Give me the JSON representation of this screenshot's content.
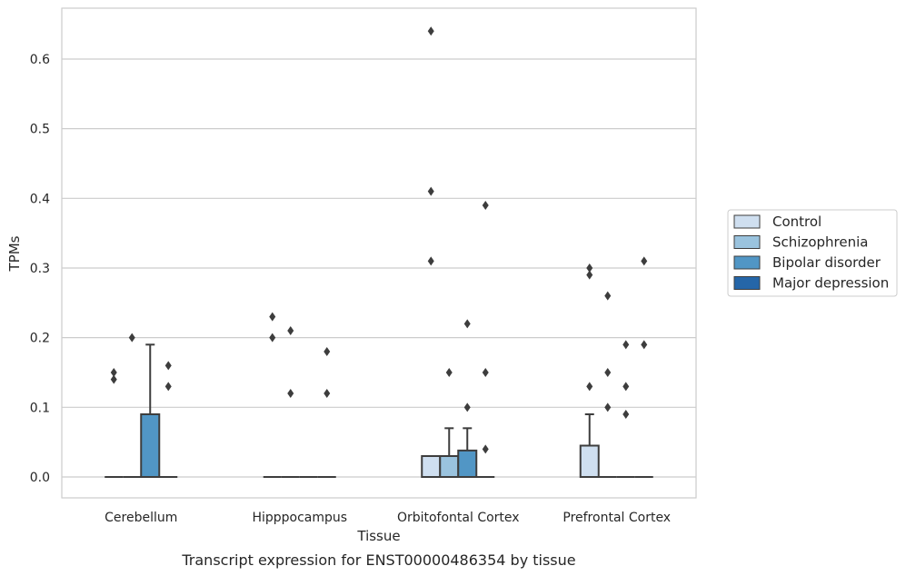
{
  "caption": "Transcript expression for ENST00000486354 by tissue",
  "chart_data": {
    "type": "box",
    "xlabel": "Tissue",
    "ylabel": "TPMs",
    "ylim": [
      -0.03,
      0.673
    ],
    "yticks": [
      0.0,
      0.1,
      0.2,
      0.3,
      0.4,
      0.5,
      0.6
    ],
    "ytick_labels": [
      "0.0",
      "0.1",
      "0.2",
      "0.3",
      "0.4",
      "0.5",
      "0.6"
    ],
    "grid": "horizontal",
    "legend_position": "right",
    "categories": [
      "Cerebellum",
      "Hipppocampus",
      "Orbitofontal Cortex",
      "Prefrontal Cortex"
    ],
    "series": [
      {
        "name": "Control",
        "color": "#cfdff0",
        "boxes": [
          {
            "q1": 0,
            "median": 0,
            "q3": 0,
            "whisker_low": 0,
            "whisker_high": 0,
            "outliers": [
              0.14,
              0.15
            ]
          },
          {
            "q1": 0,
            "median": 0,
            "q3": 0,
            "whisker_low": 0,
            "whisker_high": 0,
            "outliers": [
              0.2,
              0.23
            ]
          },
          {
            "q1": 0,
            "median": 0,
            "q3": 0.03,
            "whisker_low": 0,
            "whisker_high": 0.03,
            "outliers": [
              0.31,
              0.41,
              0.64
            ]
          },
          {
            "q1": 0,
            "median": 0,
            "q3": 0.045,
            "whisker_low": 0,
            "whisker_high": 0.09,
            "outliers": [
              0.13,
              0.29,
              0.3
            ]
          }
        ]
      },
      {
        "name": "Schizophrenia",
        "color": "#9ac3de",
        "boxes": [
          {
            "q1": 0,
            "median": 0,
            "q3": 0,
            "whisker_low": 0,
            "whisker_high": 0,
            "outliers": [
              0.2
            ]
          },
          {
            "q1": 0,
            "median": 0,
            "q3": 0,
            "whisker_low": 0,
            "whisker_high": 0,
            "outliers": [
              0.12,
              0.21
            ]
          },
          {
            "q1": 0,
            "median": 0,
            "q3": 0.03,
            "whisker_low": 0,
            "whisker_high": 0.07,
            "outliers": [
              0.15
            ]
          },
          {
            "q1": 0,
            "median": 0,
            "q3": 0,
            "whisker_low": 0,
            "whisker_high": 0,
            "outliers": [
              0.1,
              0.15,
              0.26
            ]
          }
        ]
      },
      {
        "name": "Bipolar disorder",
        "color": "#5196c5",
        "boxes": [
          {
            "q1": 0,
            "median": 0,
            "q3": 0.09,
            "whisker_low": 0,
            "whisker_high": 0.19,
            "outliers": []
          },
          {
            "q1": 0,
            "median": 0,
            "q3": 0,
            "whisker_low": 0,
            "whisker_high": 0,
            "outliers": []
          },
          {
            "q1": 0,
            "median": 0,
            "q3": 0.038,
            "whisker_low": 0,
            "whisker_high": 0.07,
            "outliers": [
              0.1,
              0.22
            ]
          },
          {
            "q1": 0,
            "median": 0,
            "q3": 0,
            "whisker_low": 0,
            "whisker_high": 0,
            "outliers": [
              0.09,
              0.13,
              0.19
            ]
          }
        ]
      },
      {
        "name": "Major depression",
        "color": "#2566a8",
        "boxes": [
          {
            "q1": 0,
            "median": 0,
            "q3": 0,
            "whisker_low": 0,
            "whisker_high": 0,
            "outliers": [
              0.13,
              0.16
            ]
          },
          {
            "q1": 0,
            "median": 0,
            "q3": 0,
            "whisker_low": 0,
            "whisker_high": 0,
            "outliers": [
              0.12,
              0.18
            ]
          },
          {
            "q1": 0,
            "median": 0,
            "q3": 0,
            "whisker_low": 0,
            "whisker_high": 0,
            "outliers": [
              0.04,
              0.15,
              0.39
            ]
          },
          {
            "q1": 0,
            "median": 0,
            "q3": 0,
            "whisker_low": 0,
            "whisker_high": 0,
            "outliers": [
              0.19,
              0.31
            ]
          }
        ]
      }
    ]
  }
}
